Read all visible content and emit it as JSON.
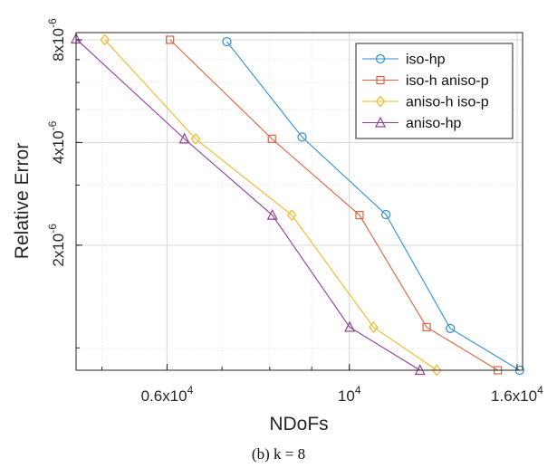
{
  "chart_data": {
    "type": "line",
    "xlabel": "NDoFs",
    "ylabel": "Relative Error",
    "x_scale": "log",
    "y_scale": "log",
    "xlim": [
      4650,
      16250
    ],
    "ylim": [
      8.6e-07,
      8.4e-06
    ],
    "x_ticks": [
      {
        "value": 6000,
        "mantissa": "0.6x10",
        "exp": "4"
      },
      {
        "value": 10000,
        "mantissa": "10",
        "exp": "4"
      },
      {
        "value": 16000,
        "mantissa": "1.6x10",
        "exp": "4"
      }
    ],
    "y_ticks": [
      {
        "value": 2e-06,
        "mantissa": "2x10",
        "exp": "-6"
      },
      {
        "value": 4e-06,
        "mantissa": "4x10",
        "exp": "-6"
      },
      {
        "value": 8e-06,
        "mantissa": "8x10",
        "exp": "-6"
      }
    ],
    "grid": true,
    "legend_position": "top-right",
    "series": [
      {
        "name": "iso-hp",
        "marker": "circle",
        "color": "#2f8fd2",
        "points": [
          [
            7095,
            7.9e-06
          ],
          [
            8760,
            4.15e-06
          ],
          [
            11080,
            2.46e-06
          ],
          [
            13270,
            1.14e-06
          ],
          [
            16120,
            8.6e-07
          ]
        ]
      },
      {
        "name": "iso-h aniso-p",
        "marker": "square",
        "color": "#d9643f",
        "points": [
          [
            6050,
            8e-06
          ],
          [
            8050,
            4.1e-06
          ],
          [
            10290,
            2.45e-06
          ],
          [
            12420,
            1.15e-06
          ],
          [
            15160,
            8.6e-07
          ]
        ]
      },
      {
        "name": "aniso-h iso-p",
        "marker": "diamond",
        "color": "#f0b92a",
        "points": [
          [
            5040,
            8e-06
          ],
          [
            6500,
            4.1e-06
          ],
          [
            8510,
            2.45e-06
          ],
          [
            10700,
            1.15e-06
          ],
          [
            12780,
            8.6e-07
          ]
        ]
      },
      {
        "name": "aniso-hp",
        "marker": "triangle",
        "color": "#8e3f9c",
        "points": [
          [
            4650,
            8.05e-06
          ],
          [
            6300,
            4.1e-06
          ],
          [
            8060,
            2.45e-06
          ],
          [
            10010,
            1.15e-06
          ],
          [
            12190,
            8.6e-07
          ]
        ]
      }
    ]
  },
  "caption": "(b) k = 8"
}
